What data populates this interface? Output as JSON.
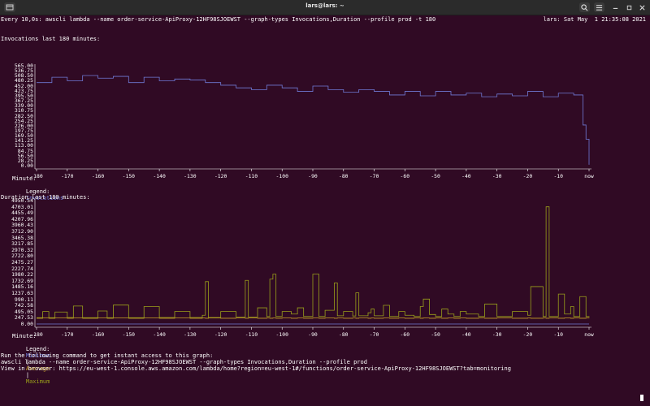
{
  "window": {
    "title": "lars@lars: ~"
  },
  "watch_header": {
    "command": "Every 10,0s: awscli lambda --name order-service-ApiProxy-12HF98SJOEWST --graph-types Invocations,Duration --profile prod -t 180",
    "status": "lars: Sat May  1 21:35:08 2021"
  },
  "charts": [
    {
      "title": "Invocations last 180 minutes:",
      "xlabel": "Minute:",
      "legend_label": "Legend:",
      "legend": [
        {
          "name": "Invocations",
          "color": "#6f7ad6"
        }
      ],
      "yticks": [
        "565.00",
        "536.75",
        "508.50",
        "480.25",
        "452.00",
        "423.75",
        "395.50",
        "367.25",
        "339.00",
        "310.75",
        "282.50",
        "254.25",
        "226.00",
        "197.75",
        "169.50",
        "141.25",
        "113.00",
        "84.75",
        "56.50",
        "28.25",
        "0.00"
      ],
      "xticks": [
        "-180",
        "-170",
        "-160",
        "-150",
        "-140",
        "-130",
        "-120",
        "-110",
        "-100",
        "-90",
        "-80",
        "-70",
        "-60",
        "-50",
        "-40",
        "-30",
        "-20",
        "-10",
        "now"
      ]
    },
    {
      "title": "Duration last 180 minutes:",
      "xlabel": "Minute:",
      "legend_label": "Legend:",
      "legend": [
        {
          "name": "Minimum",
          "color": "#6f7ad6"
        },
        {
          "name": "Average",
          "color": "#c9a227"
        },
        {
          "name": "Maximum",
          "color": "#9aa01a"
        }
      ],
      "legend_sep": "|",
      "yticks": [
        "4950.54",
        "4703.01",
        "4455.49",
        "4207.96",
        "3960.43",
        "3712.90",
        "3465.38",
        "3217.85",
        "2970.32",
        "2722.80",
        "2475.27",
        "2227.74",
        "1980.22",
        "1732.69",
        "1485.16",
        "1237.63",
        "990.11",
        "742.58",
        "495.05",
        "247.53",
        "0.00"
      ],
      "xticks": [
        "-180",
        "-170",
        "-160",
        "-150",
        "-140",
        "-130",
        "-120",
        "-110",
        "-100",
        "-90",
        "-80",
        "-70",
        "-60",
        "-50",
        "-40",
        "-30",
        "-20",
        "-10",
        "now"
      ]
    }
  ],
  "chart_data": [
    {
      "type": "line",
      "title": "Invocations last 180 minutes:",
      "xlabel": "Minute:",
      "ylabel": "",
      "ylim": [
        0,
        565
      ],
      "x": [
        -180,
        -175,
        -170,
        -165,
        -160,
        -155,
        -150,
        -145,
        -140,
        -135,
        -130,
        -125,
        -120,
        -115,
        -110,
        -105,
        -100,
        -95,
        -90,
        -85,
        -80,
        -75,
        -70,
        -65,
        -60,
        -55,
        -50,
        -45,
        -40,
        -35,
        -30,
        -25,
        -20,
        -15,
        -10,
        -5,
        -2,
        -1,
        0
      ],
      "series": [
        {
          "name": "Invocations",
          "values": [
            470,
            500,
            480,
            510,
            495,
            505,
            470,
            500,
            480,
            490,
            485,
            470,
            455,
            440,
            430,
            455,
            440,
            420,
            450,
            430,
            415,
            430,
            420,
            400,
            420,
            395,
            420,
            400,
            410,
            390,
            405,
            395,
            420,
            390,
            410,
            400,
            230,
            150,
            5
          ]
        }
      ]
    },
    {
      "type": "line",
      "title": "Duration last 180 minutes:",
      "xlabel": "Minute:",
      "ylabel": "",
      "ylim": [
        0,
        4950.54
      ],
      "x": [
        -180,
        -178,
        -176,
        -174,
        -170,
        -168,
        -165,
        -160,
        -157,
        -155,
        -150,
        -145,
        -140,
        -135,
        -130,
        -126,
        -125,
        -124,
        -120,
        -115,
        -112,
        -111,
        -108,
        -105,
        -104,
        -103,
        -102,
        -100,
        -97,
        -95,
        -93,
        -90,
        -88,
        -86,
        -83,
        -82,
        -80,
        -77,
        -76,
        -75,
        -72,
        -71,
        -70,
        -67,
        -65,
        -62,
        -60,
        -57,
        -55,
        -54,
        -52,
        -50,
        -48,
        -46,
        -44,
        -42,
        -40,
        -36,
        -34,
        -30,
        -25,
        -20,
        -19,
        -15,
        -14,
        -13,
        -10,
        -8,
        -6,
        -5,
        -3,
        -1,
        0
      ],
      "series": [
        {
          "name": "Minimum",
          "values": [
            0,
            0,
            0,
            0,
            0,
            0,
            0,
            0,
            0,
            0,
            0,
            0,
            0,
            0,
            0,
            0,
            0,
            0,
            0,
            0,
            0,
            0,
            0,
            0,
            0,
            0,
            0,
            0,
            0,
            0,
            0,
            0,
            0,
            0,
            0,
            0,
            0,
            0,
            0,
            0,
            0,
            0,
            0,
            0,
            0,
            0,
            0,
            0,
            0,
            0,
            0,
            0,
            0,
            0,
            0,
            0,
            0,
            0,
            0,
            0,
            0,
            0,
            0,
            0,
            0,
            0,
            0,
            0,
            0,
            0,
            0,
            0,
            0
          ]
        },
        {
          "name": "Average",
          "values": [
            230,
            240,
            230,
            240,
            230,
            240,
            230,
            240,
            230,
            240,
            230,
            240,
            230,
            240,
            230,
            240,
            230,
            240,
            230,
            240,
            230,
            240,
            230,
            240,
            230,
            240,
            230,
            240,
            230,
            240,
            230,
            240,
            230,
            240,
            230,
            240,
            230,
            240,
            230,
            240,
            230,
            240,
            230,
            240,
            230,
            240,
            230,
            240,
            230,
            240,
            230,
            240,
            230,
            240,
            230,
            240,
            230,
            240,
            230,
            240,
            230,
            240,
            230,
            240,
            230,
            240,
            230,
            240,
            230,
            240,
            230,
            240,
            230
          ]
        },
        {
          "name": "Maximum",
          "values": [
            250,
            500,
            250,
            480,
            260,
            720,
            250,
            520,
            250,
            760,
            250,
            700,
            260,
            500,
            260,
            350,
            1700,
            260,
            500,
            280,
            1750,
            280,
            650,
            300,
            1800,
            2000,
            300,
            500,
            400,
            650,
            300,
            2000,
            300,
            550,
            1650,
            330,
            500,
            320,
            1250,
            330,
            450,
            600,
            330,
            750,
            300,
            500,
            350,
            300,
            700,
            1000,
            380,
            300,
            600,
            400,
            300,
            500,
            400,
            300,
            800,
            300,
            500,
            350,
            1500,
            300,
            4700,
            300,
            1200,
            400,
            700,
            300,
            1100,
            300,
            280
          ]
        }
      ]
    }
  ],
  "footer": {
    "line1": "Run the following command to get instant access to this graph:",
    "line2": "awscli lambda --name order-service-ApiProxy-12HF98SJOEWST --graph-types Invocations,Duration --profile prod",
    "line3": "View in browser: https://eu-west-1.console.aws.amazon.com/lambda/home?region=eu-west-1#/functions/order-service-ApiProxy-12HF98SJOEWST?tab=monitoring"
  }
}
